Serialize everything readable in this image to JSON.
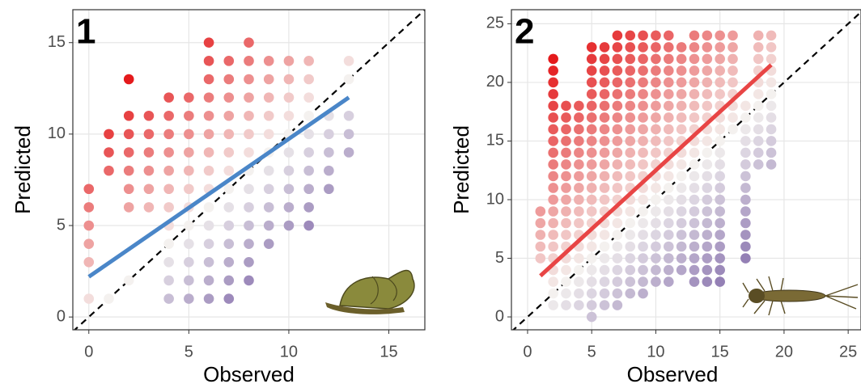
{
  "chart_data": [
    {
      "type": "scatter",
      "panel_label": "1",
      "x_label": "Observed",
      "y_label": "Predicted",
      "xlim": [
        -0.8,
        16.8
      ],
      "ylim": [
        -0.7,
        16.8
      ],
      "xticks": [
        0,
        5,
        10,
        15
      ],
      "yticks": [
        0,
        5,
        10,
        15
      ],
      "grid": true,
      "color_scale": {
        "low": "#54358f",
        "mid": "#f4f1ef",
        "high": "#e41a1c"
      },
      "x": [
        0,
        0,
        0,
        0,
        0,
        0,
        1,
        1,
        1,
        1,
        2,
        2,
        2,
        2,
        2,
        2,
        2,
        2,
        3,
        3,
        3,
        3,
        3,
        3,
        4,
        4,
        4,
        4,
        4,
        4,
        4,
        4,
        4,
        4,
        4,
        4,
        5,
        5,
        5,
        5,
        5,
        5,
        5,
        5,
        5,
        5,
        5,
        5,
        6,
        6,
        6,
        6,
        6,
        6,
        6,
        6,
        6,
        6,
        6,
        6,
        6,
        6,
        6,
        7,
        7,
        7,
        7,
        7,
        7,
        7,
        7,
        7,
        7,
        7,
        7,
        7,
        7,
        8,
        8,
        8,
        8,
        8,
        8,
        8,
        8,
        8,
        8,
        8,
        8,
        8,
        8,
        9,
        9,
        9,
        9,
        9,
        9,
        9,
        9,
        9,
        9,
        9,
        10,
        10,
        10,
        10,
        10,
        10,
        10,
        10,
        10,
        10,
        11,
        11,
        11,
        11,
        11,
        11,
        11,
        11,
        11,
        11,
        12,
        12,
        12,
        12,
        12,
        13,
        13,
        13,
        13,
        13
      ],
      "values": [
        1,
        3,
        4,
        5,
        6,
        7,
        1,
        8,
        9,
        10,
        2,
        6,
        7,
        8,
        9,
        10,
        11,
        13,
        6,
        7,
        8,
        9,
        10,
        11,
        1,
        2,
        3,
        4,
        5,
        6,
        7,
        8,
        9,
        10,
        11,
        12,
        1,
        2,
        3,
        4,
        5,
        6,
        7,
        8,
        9,
        10,
        11,
        12,
        1,
        2,
        3,
        4,
        5,
        6,
        7,
        8,
        9,
        10,
        11,
        12,
        13,
        14,
        15,
        1,
        2,
        3,
        4,
        5,
        6,
        7,
        8,
        9,
        10,
        11,
        12,
        13,
        14,
        2,
        3,
        4,
        5,
        6,
        7,
        8,
        9,
        10,
        11,
        12,
        13,
        14,
        15,
        4,
        5,
        6,
        7,
        8,
        9,
        10,
        11,
        12,
        13,
        14,
        5,
        6,
        7,
        8,
        9,
        10,
        11,
        12,
        13,
        14,
        5,
        6,
        7,
        8,
        9,
        10,
        11,
        12,
        13,
        14,
        7,
        8,
        9,
        10,
        11,
        9,
        10,
        11,
        13,
        14
      ],
      "fit_line": {
        "x": [
          0,
          13
        ],
        "values": [
          2.2,
          12
        ],
        "color": "#4a86c8"
      }
    },
    {
      "type": "scatter",
      "panel_label": "2",
      "x_label": "Observed",
      "y_label": "Predicted",
      "xlim": [
        -1.26,
        26
      ],
      "ylim": [
        -1.1,
        26.2
      ],
      "xticks": [
        0,
        5,
        10,
        15,
        20,
        25
      ],
      "yticks": [
        0,
        5,
        10,
        15,
        20,
        25
      ],
      "grid": true,
      "color_scale": {
        "low": "#54358f",
        "mid": "#f4f1ef",
        "high": "#e41a1c"
      },
      "x": [
        1,
        1,
        1,
        1,
        1,
        2,
        2,
        2,
        2,
        2,
        2,
        2,
        2,
        2,
        2,
        2,
        2,
        2,
        2,
        2,
        2,
        2,
        2,
        2,
        2,
        2,
        2,
        3,
        3,
        3,
        3,
        3,
        3,
        3,
        3,
        3,
        3,
        3,
        3,
        3,
        3,
        3,
        3,
        3,
        3,
        4,
        4,
        4,
        4,
        4,
        4,
        4,
        4,
        4,
        4,
        4,
        4,
        4,
        4,
        4,
        4,
        4,
        4,
        5,
        5,
        5,
        5,
        5,
        5,
        5,
        5,
        5,
        5,
        5,
        5,
        5,
        5,
        5,
        5,
        5,
        5,
        5,
        5,
        5,
        5,
        5,
        5,
        6,
        6,
        6,
        6,
        6,
        6,
        6,
        6,
        6,
        6,
        6,
        6,
        6,
        6,
        6,
        6,
        6,
        6,
        6,
        6,
        6,
        6,
        6,
        7,
        7,
        7,
        7,
        7,
        7,
        7,
        7,
        7,
        7,
        7,
        7,
        7,
        7,
        7,
        7,
        7,
        7,
        7,
        7,
        7,
        7,
        7,
        7,
        8,
        8,
        8,
        8,
        8,
        8,
        8,
        8,
        8,
        8,
        8,
        8,
        8,
        8,
        8,
        8,
        8,
        8,
        8,
        8,
        8,
        8,
        8,
        9,
        9,
        9,
        9,
        9,
        9,
        9,
        9,
        9,
        9,
        9,
        9,
        9,
        9,
        9,
        9,
        9,
        9,
        9,
        9,
        9,
        9,
        9,
        10,
        10,
        10,
        10,
        10,
        10,
        10,
        10,
        10,
        10,
        10,
        10,
        10,
        10,
        10,
        10,
        10,
        10,
        10,
        10,
        10,
        10,
        11,
        11,
        11,
        11,
        11,
        11,
        11,
        11,
        11,
        11,
        11,
        11,
        11,
        11,
        11,
        11,
        11,
        11,
        11,
        11,
        11,
        11,
        12,
        12,
        12,
        12,
        12,
        12,
        12,
        12,
        12,
        12,
        12,
        12,
        12,
        12,
        12,
        12,
        12,
        12,
        12,
        12,
        13,
        13,
        13,
        13,
        13,
        13,
        13,
        13,
        13,
        13,
        13,
        13,
        13,
        13,
        13,
        13,
        13,
        13,
        13,
        13,
        13,
        13,
        14,
        14,
        14,
        14,
        14,
        14,
        14,
        14,
        14,
        14,
        14,
        14,
        14,
        14,
        14,
        14,
        14,
        14,
        14,
        14,
        14,
        14,
        15,
        15,
        15,
        15,
        15,
        15,
        15,
        15,
        15,
        15,
        15,
        15,
        15,
        15,
        15,
        15,
        15,
        15,
        15,
        15,
        15,
        15,
        16,
        16,
        16,
        16,
        16,
        16,
        16,
        16,
        16,
        17,
        17,
        17,
        17,
        17,
        17,
        17,
        17,
        17,
        17,
        17,
        17,
        17,
        17,
        18,
        18,
        18,
        18,
        18,
        18,
        18,
        18,
        18,
        18,
        18,
        18,
        19,
        19,
        19,
        19,
        19,
        19,
        19,
        19,
        19,
        19,
        19,
        19
      ],
      "values": [
        5,
        6,
        7,
        8,
        9,
        1,
        2,
        3,
        4,
        5,
        6,
        7,
        8,
        9,
        10,
        11,
        12,
        13,
        14,
        15,
        16,
        17,
        18,
        19,
        20,
        21,
        22,
        1,
        2,
        3,
        4,
        5,
        6,
        7,
        8,
        9,
        10,
        11,
        12,
        13,
        14,
        15,
        16,
        17,
        18,
        1,
        2,
        3,
        4,
        5,
        6,
        7,
        8,
        9,
        10,
        11,
        12,
        13,
        14,
        15,
        16,
        17,
        18,
        0,
        1,
        2,
        3,
        4,
        5,
        6,
        7,
        8,
        9,
        10,
        11,
        12,
        13,
        14,
        15,
        16,
        17,
        18,
        19,
        20,
        21,
        22,
        23,
        1,
        2,
        3,
        4,
        5,
        6,
        7,
        8,
        9,
        10,
        11,
        12,
        13,
        14,
        15,
        16,
        17,
        18,
        19,
        20,
        21,
        22,
        23,
        1,
        2,
        3,
        4,
        5,
        6,
        7,
        8,
        9,
        10,
        11,
        12,
        13,
        14,
        15,
        16,
        17,
        18,
        19,
        20,
        21,
        22,
        23,
        24,
        2,
        3,
        4,
        5,
        6,
        7,
        8,
        9,
        10,
        11,
        12,
        13,
        14,
        15,
        16,
        17,
        18,
        19,
        20,
        21,
        22,
        23,
        24,
        2,
        3,
        4,
        5,
        6,
        7,
        8,
        9,
        10,
        11,
        12,
        13,
        14,
        15,
        16,
        17,
        18,
        19,
        20,
        21,
        22,
        23,
        24,
        3,
        4,
        5,
        6,
        7,
        8,
        9,
        10,
        11,
        12,
        13,
        14,
        15,
        16,
        17,
        18,
        19,
        20,
        21,
        22,
        23,
        24,
        3,
        4,
        5,
        6,
        7,
        8,
        9,
        10,
        11,
        12,
        13,
        14,
        15,
        16,
        17,
        18,
        19,
        20,
        21,
        22,
        23,
        24,
        4,
        5,
        6,
        7,
        8,
        9,
        10,
        11,
        12,
        13,
        14,
        15,
        16,
        17,
        18,
        19,
        20,
        21,
        22,
        23,
        3,
        4,
        5,
        6,
        7,
        8,
        9,
        10,
        11,
        12,
        13,
        14,
        15,
        16,
        17,
        18,
        19,
        20,
        21,
        22,
        23,
        24,
        3,
        4,
        5,
        6,
        7,
        8,
        9,
        10,
        11,
        12,
        13,
        14,
        15,
        16,
        17,
        18,
        19,
        20,
        21,
        22,
        23,
        24,
        3,
        4,
        5,
        6,
        7,
        8,
        9,
        10,
        11,
        12,
        13,
        14,
        15,
        16,
        17,
        18,
        19,
        20,
        21,
        22,
        23,
        24,
        16,
        17,
        18,
        19,
        20,
        21,
        22,
        23,
        24,
        5,
        6,
        7,
        8,
        9,
        10,
        11,
        12,
        13,
        14,
        15,
        16,
        17,
        18,
        13,
        14,
        15,
        16,
        17,
        18,
        19,
        20,
        21,
        22,
        23,
        24,
        13,
        14,
        15,
        16,
        17,
        18,
        19,
        20,
        21,
        22,
        23,
        24
      ],
      "fit_line": {
        "x": [
          1,
          19
        ],
        "values": [
          3.5,
          21.5
        ],
        "color": "#e84545"
      }
    }
  ]
}
